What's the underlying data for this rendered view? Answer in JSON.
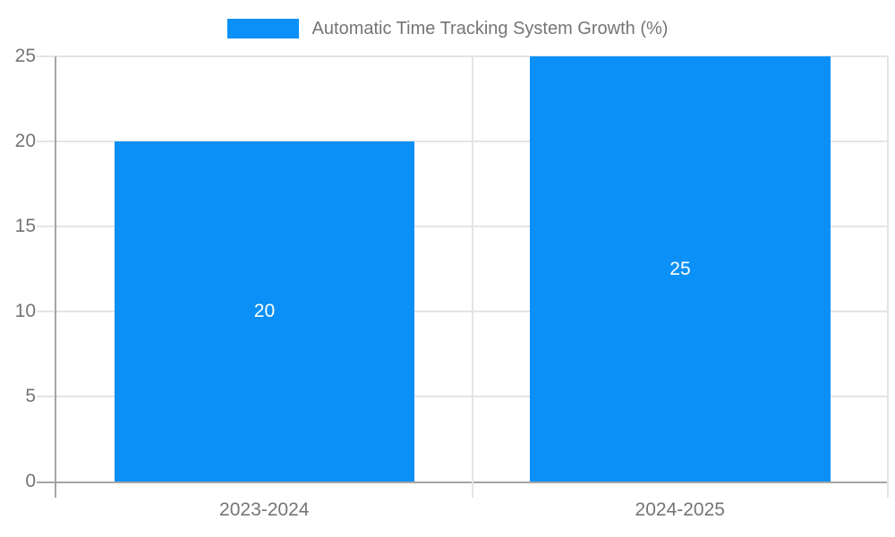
{
  "chart_data": {
    "type": "bar",
    "title": "Automatic Time Tracking System Growth (%)",
    "categories": [
      "2023-2024",
      "2024-2025"
    ],
    "values": [
      20,
      25
    ],
    "xlabel": "",
    "ylabel": "",
    "ylim": [
      0,
      25
    ],
    "yticks": [
      0,
      5,
      10,
      15,
      20,
      25
    ],
    "grid": true,
    "legend_position": "top",
    "bar_value_labels": [
      "20",
      "25"
    ],
    "colors": {
      "bar": "#0a90f6",
      "bar_value_label": "#ffffff",
      "axis_line": "#a5a5a5",
      "gridline": "#e4e4e4",
      "tick_label": "#757575",
      "background": "#ffffff"
    }
  }
}
